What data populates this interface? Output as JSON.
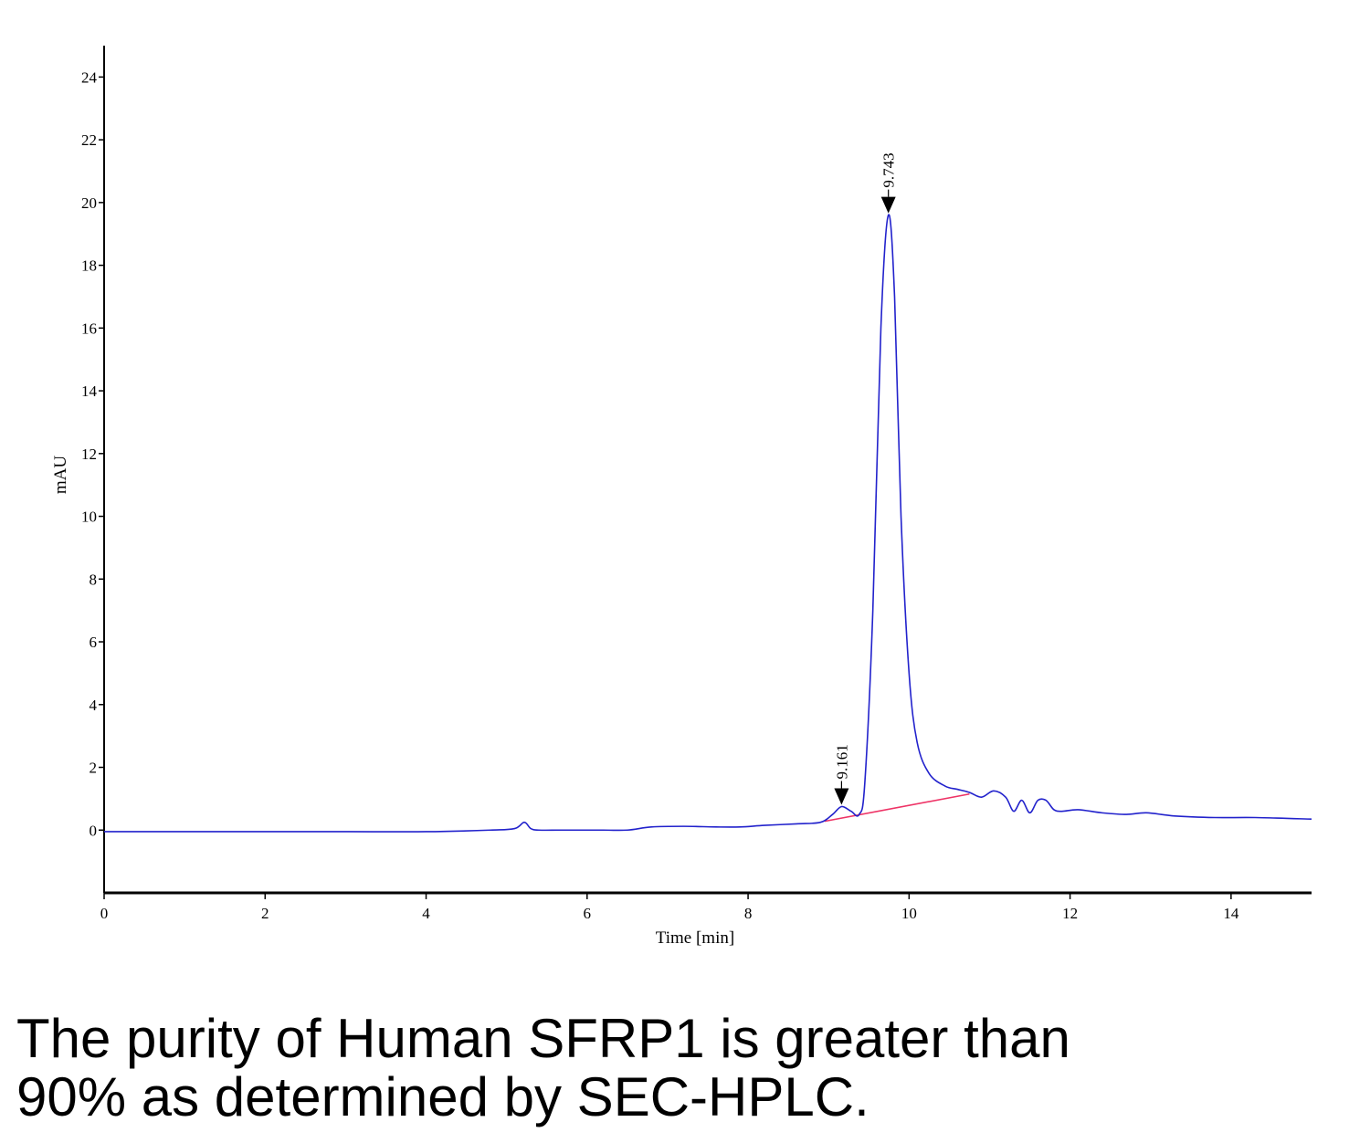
{
  "chart_data": {
    "type": "line",
    "title": "",
    "xlabel": "Time [min]",
    "ylabel": "mAU",
    "xlim": [
      0,
      15
    ],
    "ylim": [
      -2,
      25
    ],
    "x_ticks": [
      0,
      2,
      4,
      6,
      8,
      10,
      12,
      14
    ],
    "y_ticks": [
      0,
      2,
      4,
      6,
      8,
      10,
      12,
      14,
      16,
      18,
      20,
      22,
      24
    ],
    "grid": false,
    "line_color": "#2222cc",
    "baseline_color": "#ee3366",
    "series": [
      {
        "x": [
          0,
          1,
          2,
          3,
          4,
          4.8,
          5.1,
          5.22,
          5.3,
          5.4,
          5.7,
          6.2,
          6.5,
          6.8,
          7.2,
          7.6,
          7.9,
          8.2,
          8.6,
          8.9,
          9.05,
          9.161,
          9.28,
          9.38,
          9.45,
          9.55,
          9.65,
          9.743,
          9.82,
          9.9,
          10.0,
          10.1,
          10.25,
          10.45,
          10.6,
          10.75,
          10.9,
          11.05,
          11.2,
          11.3,
          11.4,
          11.5,
          11.6,
          11.7,
          11.8,
          11.9,
          12.1,
          12.4,
          12.7,
          12.95,
          13.3,
          13.8,
          14.3,
          15.0
        ],
        "y": [
          -0.05,
          -0.05,
          -0.05,
          -0.05,
          -0.05,
          0.0,
          0.05,
          0.25,
          0.05,
          0.0,
          0.0,
          0.0,
          0.0,
          0.1,
          0.12,
          0.1,
          0.1,
          0.15,
          0.2,
          0.25,
          0.5,
          0.75,
          0.6,
          0.5,
          1.5,
          7.0,
          16.0,
          19.6,
          17.0,
          10.0,
          5.0,
          2.8,
          1.8,
          1.4,
          1.3,
          1.2,
          1.05,
          1.25,
          1.05,
          0.6,
          0.95,
          0.55,
          0.95,
          0.95,
          0.65,
          0.6,
          0.65,
          0.55,
          0.5,
          0.55,
          0.45,
          0.4,
          0.4,
          0.35
        ]
      }
    ],
    "baseline_segment": {
      "x": [
        8.95,
        10.75
      ],
      "y": [
        0.28,
        1.15
      ]
    },
    "peaks": [
      {
        "x": 9.161,
        "y": 0.75,
        "label": "9.161"
      },
      {
        "x": 9.743,
        "y": 19.6,
        "label": "9.743"
      }
    ]
  },
  "caption": {
    "line1": "The purity of Human SFRP1 is greater than",
    "line2": "90% as determined by SEC-HPLC."
  }
}
